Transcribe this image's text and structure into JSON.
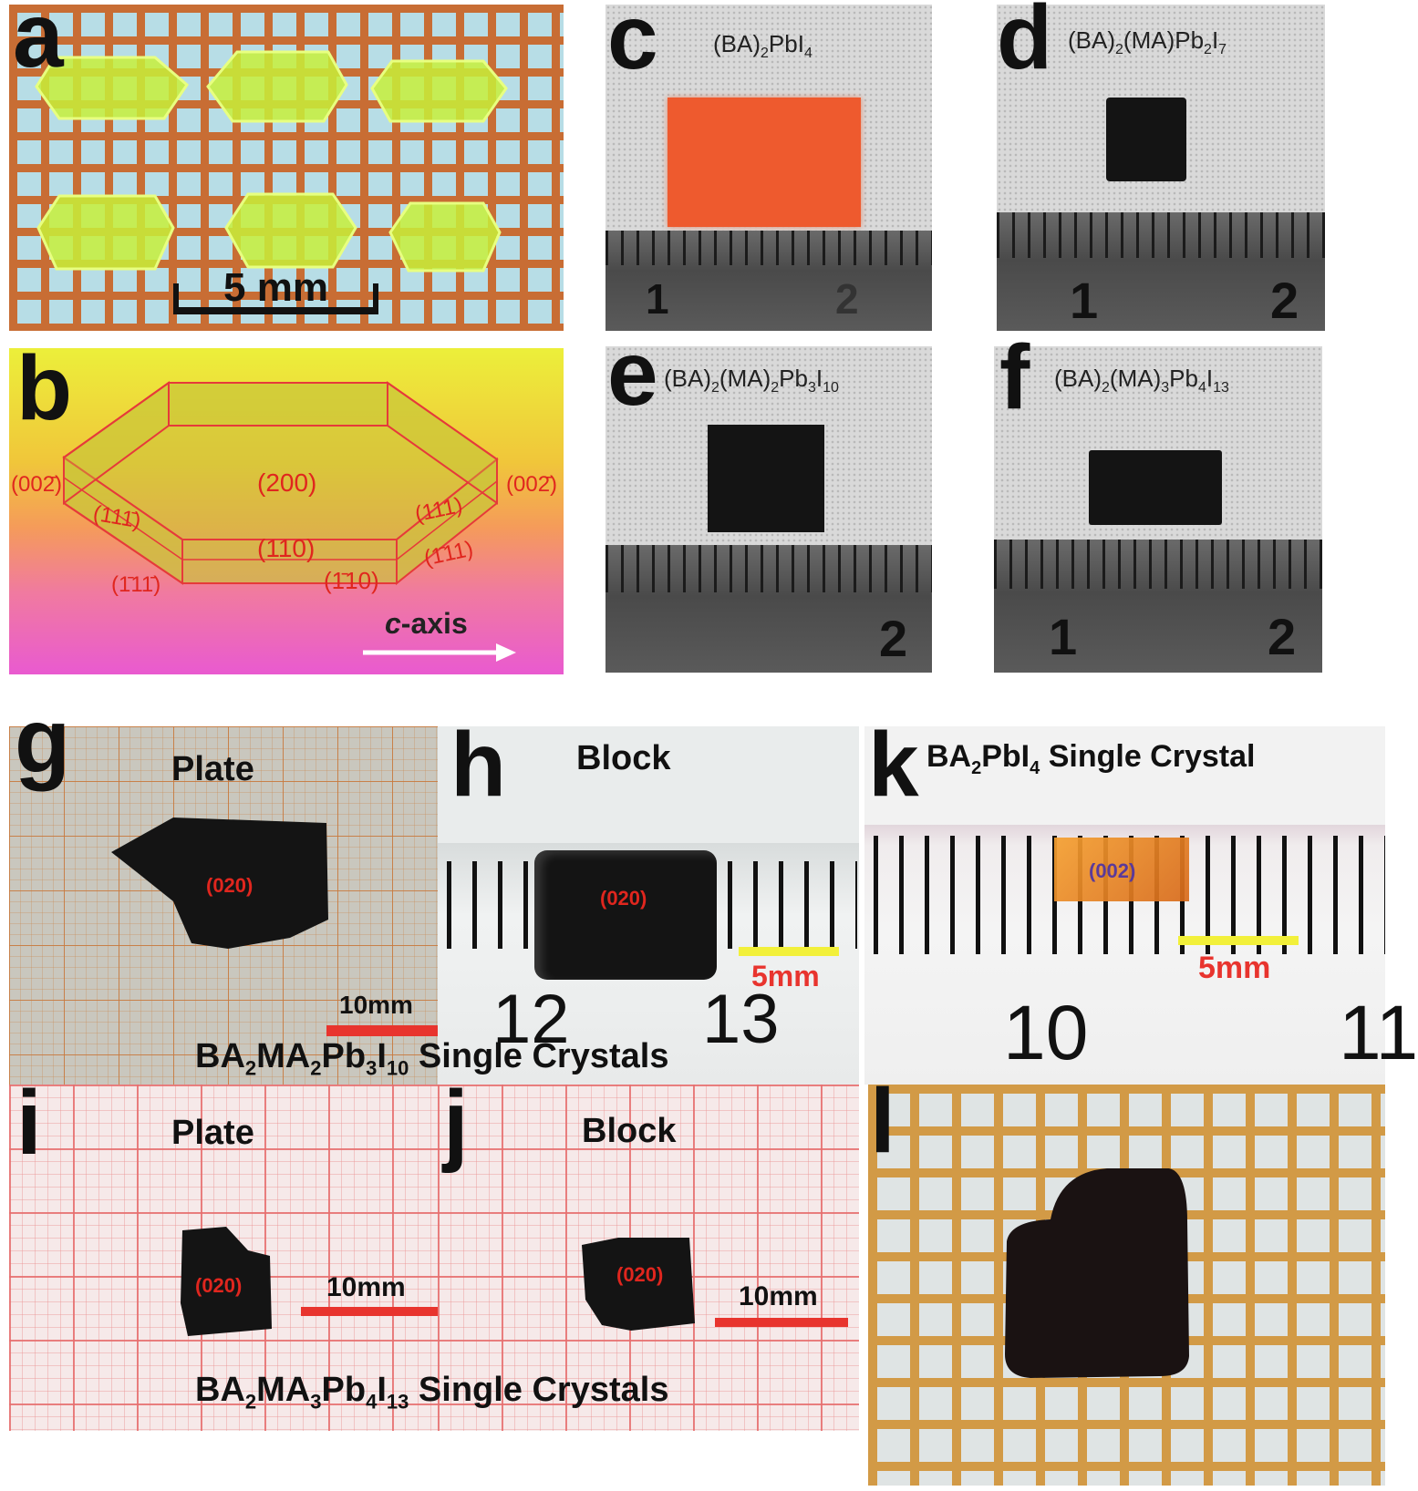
{
  "panels": {
    "a": {
      "letter": "a",
      "scale_label": "5 mm"
    },
    "b": {
      "letter": "b",
      "faces": {
        "f200": "(200)",
        "f110": "(110)",
        "f110bar": "(1̄10)",
        "f002bar_left": "(002̄)",
        "f002bar_right": "(002̄)",
        "f111_left": "(111̄)",
        "f111_right": "(111)",
        "f111bar_right": "(1̄11)",
        "f111bar_left": "(1̄11̄)"
      },
      "axis_prefix": "c",
      "axis_suffix": "-axis"
    },
    "c": {
      "letter": "c",
      "formula": [
        "(BA)",
        "2",
        "PbI",
        "4"
      ],
      "ruler": [
        "1",
        "2"
      ]
    },
    "d": {
      "letter": "d",
      "formula": [
        "(BA)",
        "2",
        "(MA)Pb",
        "2",
        "I",
        "7"
      ],
      "ruler": [
        "1",
        "2"
      ]
    },
    "e": {
      "letter": "e",
      "formula": [
        "(BA)",
        "2",
        "(MA)",
        "2",
        "Pb",
        "3",
        "I",
        "10"
      ],
      "ruler": [
        "2"
      ]
    },
    "f": {
      "letter": "f",
      "formula": [
        "(BA)",
        "2",
        "(MA)",
        "3",
        "Pb",
        "4",
        "I",
        "13"
      ],
      "ruler": [
        "1",
        "2"
      ]
    },
    "g": {
      "letter": "g",
      "title": "Plate",
      "face": "(020)",
      "scale_label": "10mm"
    },
    "h": {
      "letter": "h",
      "title": "Block",
      "face": "(020)",
      "scale_label": "5mm",
      "ruler": [
        "12",
        "13"
      ]
    },
    "k": {
      "letter": "k",
      "title_parts": [
        "BA",
        "2",
        "PbI",
        "4",
        " Single Crystal"
      ],
      "face": "(002)",
      "scale_label": "5mm",
      "ruler": [
        "10",
        "11"
      ]
    },
    "i": {
      "letter": "i",
      "title": "Plate",
      "face": "(020)",
      "scale_label": "10mm"
    },
    "j": {
      "letter": "j",
      "title": "Block",
      "face": "(020)",
      "scale_label": "10mm"
    },
    "l": {
      "letter": "l"
    }
  },
  "captions": {
    "gh": [
      "BA",
      "2",
      "MA",
      "2",
      "Pb",
      "3",
      "I",
      "10",
      " Single Crystals"
    ],
    "ij": [
      "BA",
      "2",
      "MA",
      "3",
      "Pb",
      "4",
      "I",
      "13",
      " Single Crystals"
    ]
  },
  "colors": {
    "grid_orange": "#c86d34",
    "crystal_yellow": "#c8f03a",
    "crystal_orange": "#ee5a2e",
    "crystal_dark": "#141414",
    "face_red": "#e0261e",
    "face_purple": "#5a3a9a",
    "scale_red": "#e8342e",
    "scale_yellow": "#f2f03a"
  }
}
